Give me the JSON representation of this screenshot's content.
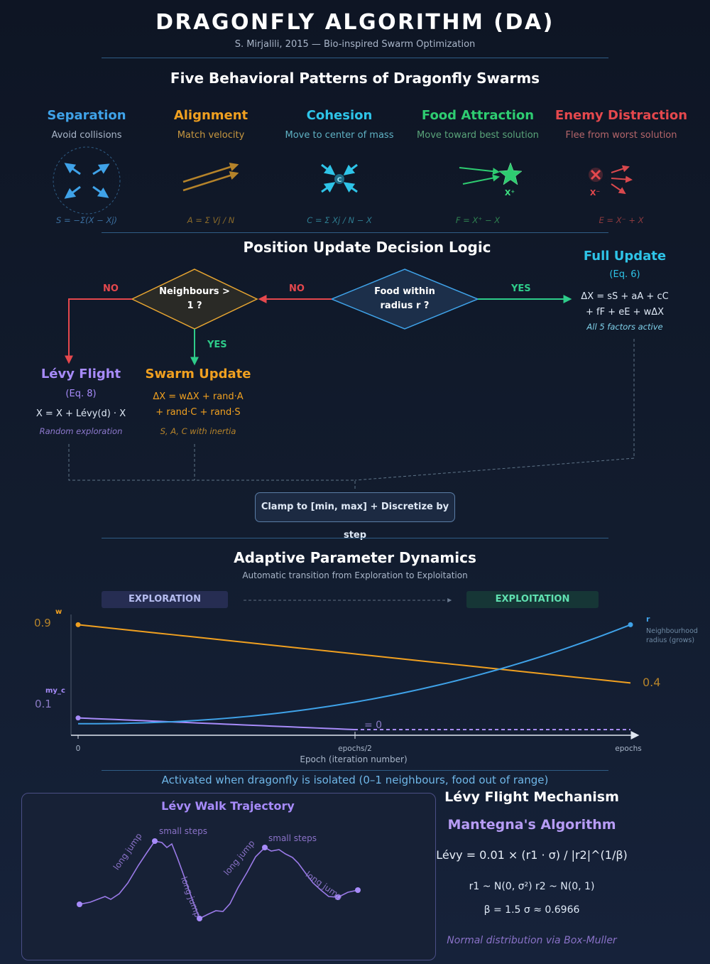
{
  "header": {
    "title": "DRAGONFLY ALGORITHM (DA)",
    "subtitle": "S. Mirjalili, 2015 — Bio-inspired Swarm Optimization"
  },
  "behaviors": {
    "section_title": "Five Behavioral Patterns of Dragonfly Swarms",
    "items": [
      {
        "title": "Separation",
        "desc": "Avoid collisions",
        "formula": "S = −Σ(X − Xj)",
        "color": "#3fa2e8"
      },
      {
        "title": "Alignment",
        "desc": "Match velocity",
        "formula": "A = Σ Vj / N",
        "color": "#f0a020"
      },
      {
        "title": "Cohesion",
        "desc": "Move to center of mass",
        "formula": "C = Σ Xj / N − X",
        "color": "#2ec4e8",
        "center_label": "C"
      },
      {
        "title": "Food Attraction",
        "desc": "Move toward best solution",
        "formula": "F = X⁺ − X",
        "color": "#2ecc71",
        "marker_label": "X⁺"
      },
      {
        "title": "Enemy Distraction",
        "desc": "Flee from worst solution",
        "formula": "E = X⁻ + X",
        "color": "#e5484d",
        "marker_label": "X⁻"
      }
    ]
  },
  "decision": {
    "section_title": "Position Update Decision Logic",
    "diamond_food": "Food within radius r ?",
    "diamond_neighbours": "Neighbours > 1 ?",
    "no_label": "NO",
    "yes_label": "YES",
    "full_update": {
      "title": "Full Update",
      "sub": "(Eq. 6)",
      "eq1": "ΔX = sS + aA + cC",
      "eq2": "+ fF + eE + wΔX",
      "note": "All 5 factors active"
    },
    "swarm_update": {
      "title": "Swarm Update",
      "eq1": "ΔX = wΔX + rand·A",
      "eq2": "+ rand·C + rand·S",
      "note": "S, A, C with inertia"
    },
    "levy_flight": {
      "title": "Lévy Flight",
      "sub": "(Eq. 8)",
      "eq1": "X = X + Lévy(d) · X",
      "note": "Random exploration"
    },
    "clamp": "Clamp to [min, max] + Discretize by step"
  },
  "dynamics": {
    "section_title": "Adaptive Parameter Dynamics",
    "subtitle": "Automatic transition from Exploration to Exploitation",
    "phase_left": "EXPLORATION",
    "phase_right": "EXPLOITATION",
    "w_label": "w",
    "w_start": "0.9",
    "w_end": "0.4",
    "myc_label": "my_c",
    "myc_start": "0.1",
    "myc_zero": "= 0",
    "r_label": "r",
    "r_desc_1": "Neighbourhood",
    "r_desc_2": "radius (grows)",
    "x_tick_0": "0",
    "x_tick_mid": "epochs/2",
    "x_tick_end": "epochs",
    "x_axis_label": "Epoch (iteration number)"
  },
  "chart_data": {
    "type": "line",
    "x": [
      0,
      0.25,
      0.5,
      0.75,
      1.0
    ],
    "xlabel": "Epoch (iteration number)",
    "series": [
      {
        "name": "w",
        "values": [
          0.9,
          0.775,
          0.65,
          0.525,
          0.4
        ],
        "color": "#f0a020"
      },
      {
        "name": "my_c",
        "values": [
          0.1,
          0.05,
          0.0,
          0.0,
          0.0
        ],
        "color": "#a78bfa"
      },
      {
        "name": "r",
        "values": [
          0.05,
          0.1,
          0.25,
          0.5,
          0.9
        ],
        "color": "#3fa2e8"
      }
    ]
  },
  "levy": {
    "activation_note": "Activated when dragonfly is isolated (0–1 neighbours, food out of range)",
    "trajectory_title": "Lévy Walk Trajectory",
    "annotations": [
      "long jump",
      "small steps",
      "long jump",
      "long jump",
      "small steps",
      "long jump"
    ],
    "mechanism_title": "Lévy Flight Mechanism",
    "algorithm_title": "Mantegna's Algorithm",
    "formula": "Lévy = 0.01 × (r1 · σ) / |r2|^(1/β)",
    "dist": "r1 ~ N(0, σ²) r2 ~ N(0, 1)",
    "beta": "β = 1.5 σ ≈ 0.6966",
    "note": "Normal distribution via Box-Muller"
  }
}
